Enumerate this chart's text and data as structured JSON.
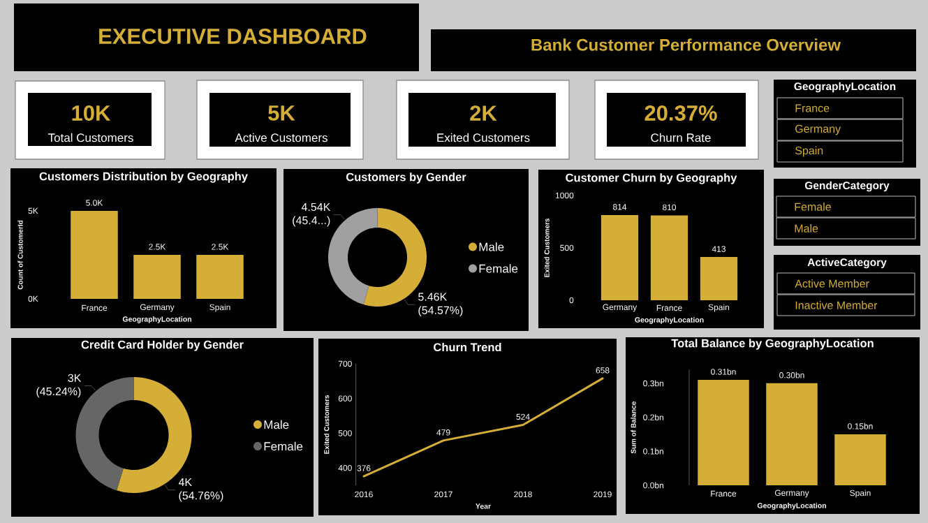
{
  "chart_data": [
    {
      "type": "other",
      "title": "EXECUTIVE DASHBOARD",
      "subtitle": "Bank Customer Performance Overview"
    },
    {
      "type": "other",
      "annotations": [
        "10K",
        "Total Customers"
      ]
    },
    {
      "type": "other",
      "annotations": [
        "5K",
        "Active Customers"
      ]
    },
    {
      "type": "other",
      "annotations": [
        "2K",
        "Exited Customers"
      ]
    },
    {
      "type": "other",
      "annotations": [
        "20.37%",
        "Churn Rate"
      ]
    },
    {
      "type": "other",
      "title": "GeographyLocation",
      "annotations": [
        "France",
        "Germany",
        "Spain"
      ]
    },
    {
      "type": "bar",
      "title": "Customers Distribution by Geography",
      "xlabel": "GeographyLocation",
      "ylabel": "Count of CustomerId",
      "categories": [
        "France",
        "Germany",
        "Spain"
      ],
      "values": [
        5.0,
        2.5,
        2.5
      ],
      "value_labels": [
        "5.0K",
        "2.5K",
        "2.5K"
      ],
      "color": "#d4ae37",
      "ylim": [
        0,
        5
      ],
      "yticks": [
        {
          "value": 0,
          "label": "0K"
        },
        {
          "value": 5,
          "label": "5K"
        }
      ]
    },
    {
      "type": "donut",
      "title": "Customers by Gender",
      "categories": [
        "Male",
        "Female"
      ],
      "values": [
        54.57,
        45.43
      ],
      "value_labels": [
        "5.46K (54.57%)",
        "4.54K (45.4...)"
      ],
      "colors": [
        "#d4ae37",
        "#a0a0a0"
      ],
      "legend": "right"
    },
    {
      "type": "bar",
      "title": "Customer Churn by Geography",
      "xlabel": "GeographyLocation",
      "ylabel": "Exited Customers",
      "categories": [
        "Germany",
        "France",
        "Spain"
      ],
      "values": [
        814,
        810,
        413
      ],
      "data_labels": true,
      "color": "#d4ae37",
      "ylim": [
        0,
        1000
      ],
      "yticks": [
        0,
        500,
        1000
      ]
    },
    {
      "type": "other",
      "title": "GenderCategory",
      "annotations": [
        "Female",
        "Male"
      ]
    },
    {
      "type": "other",
      "title": "ActiveCategory",
      "annotations": [
        "Active Member",
        "Inactive Member"
      ]
    },
    {
      "type": "donut",
      "title": "Credit Card Holder by Gender",
      "categories": [
        "Male",
        "Female"
      ],
      "values": [
        54.76,
        45.24
      ],
      "value_labels": [
        "4K (54.76%)",
        "3K (45.24%)"
      ],
      "colors": [
        "#d4ae37",
        "#666666"
      ],
      "legend": "right"
    },
    {
      "type": "line",
      "title": "Churn Trend",
      "xlabel": "Year",
      "ylabel": "Exited Customers",
      "categories": [
        "2016",
        "2017",
        "2018",
        "2019"
      ],
      "values": [
        376,
        479,
        524,
        658
      ],
      "data_labels": true,
      "color": "#d4ae37",
      "ylim": [
        350,
        700
      ],
      "yticks": [
        400,
        500,
        600,
        700
      ]
    },
    {
      "type": "bar",
      "title": "Total Balance by GeographyLocation",
      "xlabel": "GeographyLocation",
      "ylabel": "Sum of Balance",
      "categories": [
        "France",
        "Germany",
        "Spain"
      ],
      "values": [
        0.31,
        0.3,
        0.15
      ],
      "value_labels": [
        "0.31bn",
        "0.30bn",
        "0.15bn"
      ],
      "color": "#d4ae37",
      "ylim": [
        0,
        0.34
      ],
      "yticks": [
        {
          "value": 0,
          "label": "0.0bn"
        },
        {
          "value": 0.1,
          "label": "0.1bn"
        },
        {
          "value": 0.2,
          "label": "0.2bn"
        },
        {
          "value": 0.3,
          "label": "0.3bn"
        }
      ]
    }
  ]
}
